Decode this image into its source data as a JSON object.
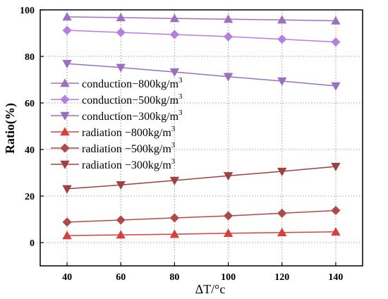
{
  "chart_data": {
    "type": "line",
    "x": [
      40,
      60,
      80,
      100,
      120,
      140
    ],
    "xlabel": "ΔT/°c",
    "ylabel": "Ratio(%)",
    "xlim": [
      30,
      150
    ],
    "ylim": [
      -10,
      100
    ],
    "xticks": [
      40,
      60,
      80,
      100,
      120,
      140
    ],
    "yticks": [
      0,
      20,
      40,
      60,
      80,
      100
    ],
    "grid": true,
    "legend_position": "left",
    "series": [
      {
        "name": "conduction−800kg/m",
        "sup": "3",
        "color": "#a070c0",
        "marker": "triangle-up",
        "values": [
          97.0,
          96.7,
          96.3,
          96.0,
          95.7,
          95.3
        ]
      },
      {
        "name": "conduction−500kg/m",
        "sup": "3",
        "color": "#b57fe0",
        "marker": "diamond",
        "values": [
          91.2,
          90.3,
          89.4,
          88.5,
          87.4,
          86.2
        ]
      },
      {
        "name": "conduction−300kg/m",
        "sup": "3",
        "color": "#9a6fc0",
        "marker": "triangle-down",
        "values": [
          76.9,
          75.2,
          73.3,
          71.3,
          69.4,
          67.3
        ]
      },
      {
        "name": "radiation −800kg/m",
        "sup": "3",
        "color": "#d84040",
        "marker": "triangle-up",
        "values": [
          3.0,
          3.3,
          3.6,
          4.0,
          4.3,
          4.6
        ]
      },
      {
        "name": "radiation −500kg/m",
        "sup": "3",
        "color": "#b04a4a",
        "marker": "diamond",
        "values": [
          8.8,
          9.7,
          10.6,
          11.5,
          12.6,
          13.8
        ]
      },
      {
        "name": "radiation −300kg/m",
        "sup": "3",
        "color": "#a04040",
        "marker": "triangle-down",
        "values": [
          23.1,
          24.8,
          26.7,
          28.7,
          30.6,
          32.7
        ]
      }
    ]
  }
}
